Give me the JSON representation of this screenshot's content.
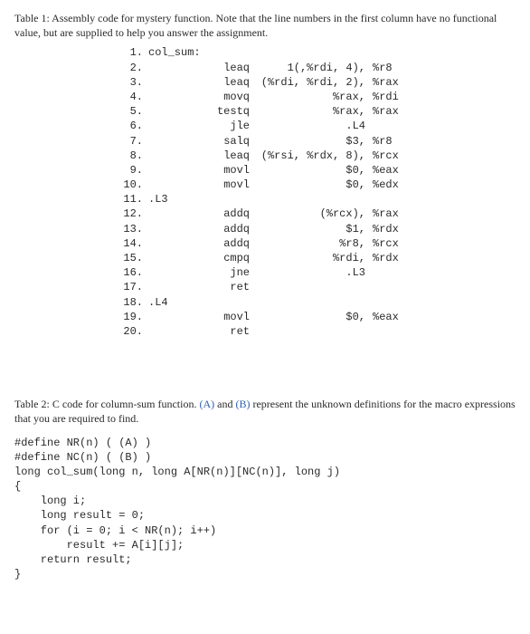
{
  "table1": {
    "caption": "Table 1: Assembly code for mystery function. Note that the line numbers in the first column have no functional value, but are supplied to help you answer the assignment.",
    "rows": [
      {
        "ln": "1.",
        "c1": "col_sum:",
        "c2": "",
        "c3": "",
        "c4": ""
      },
      {
        "ln": "2.",
        "c1": "",
        "c2": "leaq",
        "c3": "1(,%rdi, 4),",
        "c4": "%r8"
      },
      {
        "ln": "3.",
        "c1": "",
        "c2": "leaq",
        "c3": "(%rdi, %rdi, 2),",
        "c4": "%rax"
      },
      {
        "ln": "4.",
        "c1": "",
        "c2": "movq",
        "c3": "%rax,",
        "c4": "%rdi"
      },
      {
        "ln": "5.",
        "c1": "",
        "c2": "testq",
        "c3": "%rax,",
        "c4": "%rax"
      },
      {
        "ln": "6.",
        "c1": "",
        "c2": "jle",
        "c3": ".L4",
        "c4": ""
      },
      {
        "ln": "7.",
        "c1": "",
        "c2": "salq",
        "c3": "$3,",
        "c4": "%r8"
      },
      {
        "ln": "8.",
        "c1": "",
        "c2": "leaq",
        "c3": "(%rsi, %rdx, 8),",
        "c4": "%rcx"
      },
      {
        "ln": "9.",
        "c1": "",
        "c2": "movl",
        "c3": "$0,",
        "c4": "%eax"
      },
      {
        "ln": "10.",
        "c1": "",
        "c2": "movl",
        "c3": "$0,",
        "c4": "%edx"
      },
      {
        "ln": "11.",
        "c1": ".L3",
        "c2": "",
        "c3": "",
        "c4": ""
      },
      {
        "ln": "12.",
        "c1": "",
        "c2": "addq",
        "c3": "(%rcx),",
        "c4": "%rax"
      },
      {
        "ln": "13.",
        "c1": "",
        "c2": "addq",
        "c3": "$1,",
        "c4": "%rdx"
      },
      {
        "ln": "14.",
        "c1": "",
        "c2": "addq",
        "c3": "%r8,",
        "c4": "%rcx"
      },
      {
        "ln": "15.",
        "c1": "",
        "c2": "cmpq",
        "c3": "%rdi,",
        "c4": "%rdx"
      },
      {
        "ln": "16.",
        "c1": "",
        "c2": "jne",
        "c3": ".L3",
        "c4": ""
      },
      {
        "ln": "17.",
        "c1": "",
        "c2": "ret",
        "c3": "",
        "c4": ""
      },
      {
        "ln": "18.",
        "c1": ".L4",
        "c2": "",
        "c3": "",
        "c4": ""
      },
      {
        "ln": "19.",
        "c1": "",
        "c2": "movl",
        "c3": "$0,",
        "c4": "%eax"
      },
      {
        "ln": "20.",
        "c1": "",
        "c2": "ret",
        "c3": "",
        "c4": ""
      }
    ]
  },
  "table2": {
    "caption_pre": "Table 2: C code for column-sum function. ",
    "A": "(A)",
    "mid": " and ",
    "B": "(B)",
    "caption_post": " represent the unknown definitions for the macro expressions that you are required to find.",
    "code": [
      "#define NR(n) ( (A) )",
      "#define NC(n) ( (B) )",
      "long col_sum(long n, long A[NR(n)][NC(n)], long j)",
      "{",
      "    long i;",
      "    long result = 0;",
      "    for (i = 0; i < NR(n); i++)",
      "        result += A[i][j];",
      "    return result;",
      "}"
    ]
  },
  "colors": {
    "text": "#2a2a2a",
    "blue": "#2e5fb0",
    "background": "#ffffff"
  }
}
